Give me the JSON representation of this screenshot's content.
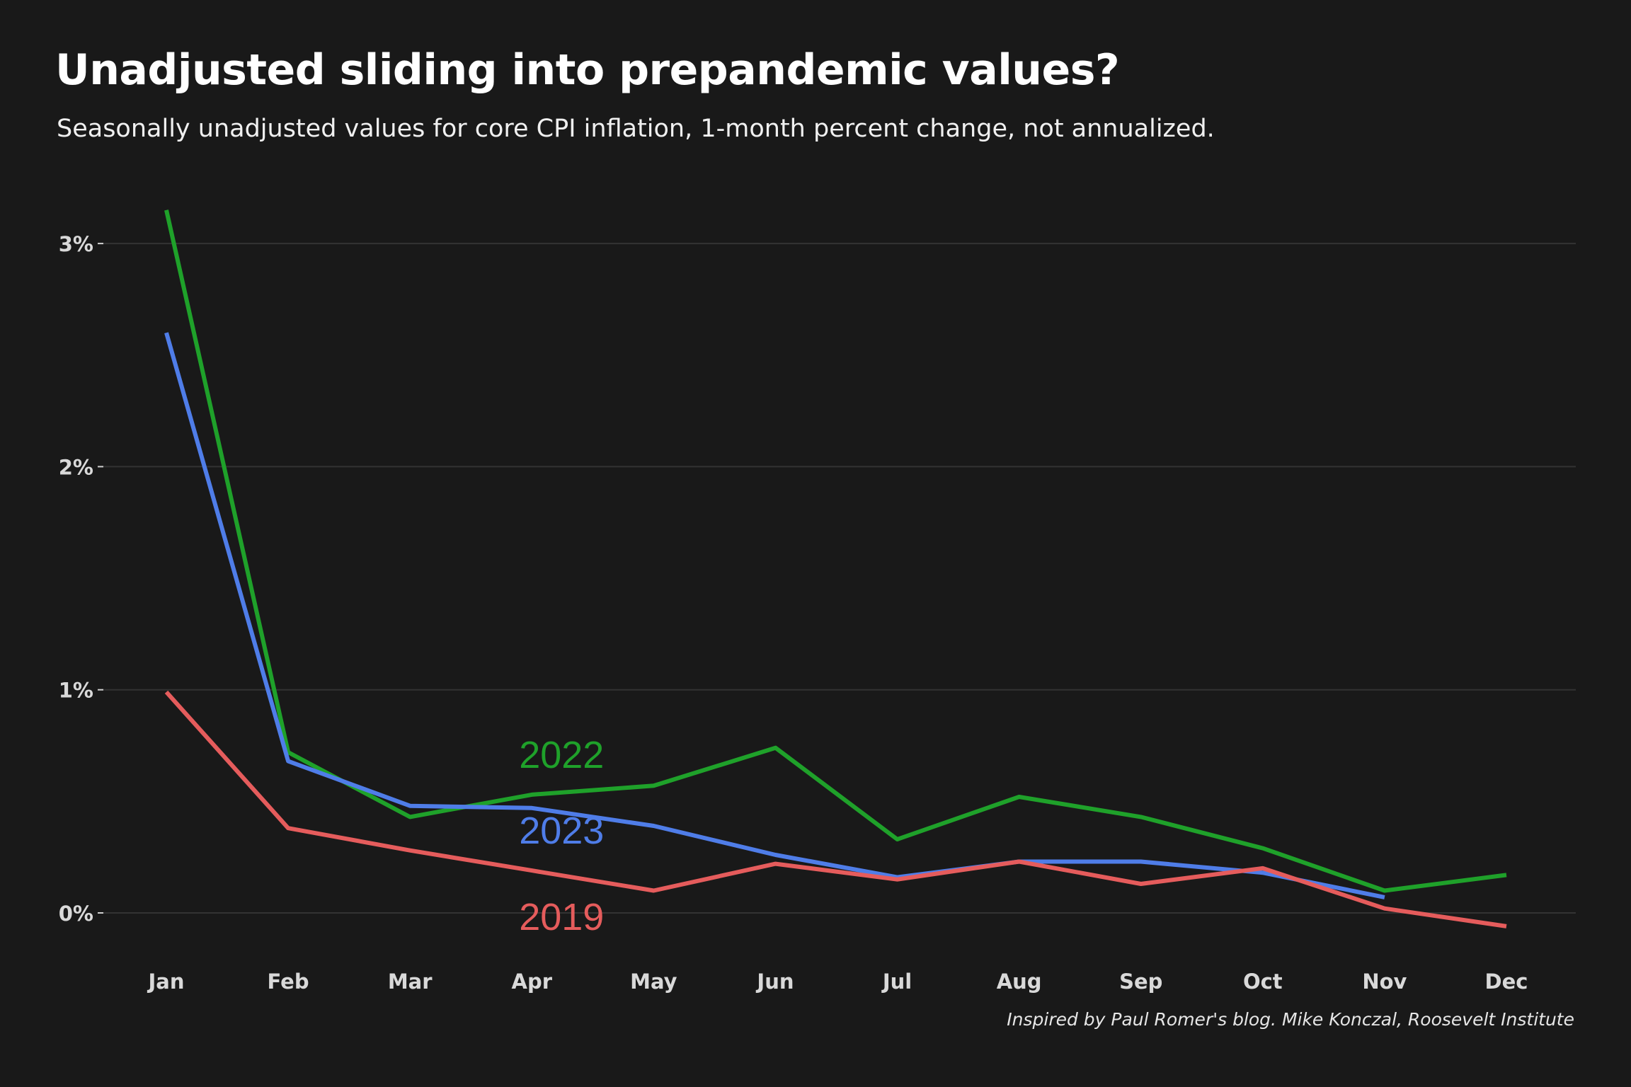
{
  "chart_data": {
    "type": "line",
    "title": "Unadjusted sliding into prepandemic values?",
    "subtitle": "Seasonally unadjusted values for core CPI inflation, 1-month percent change, not annualized.",
    "caption": "Inspired by Paul Romer's blog. Mike Konczal, Roosevelt Institute",
    "xlabel": "",
    "ylabel": "",
    "categories": [
      "Jan",
      "Feb",
      "Mar",
      "Apr",
      "May",
      "Jun",
      "Jul",
      "Aug",
      "Sep",
      "Oct",
      "Nov",
      "Dec"
    ],
    "ylim": [
      -0.2,
      3.3
    ],
    "yticks": [
      0,
      1,
      2,
      3
    ],
    "ytick_labels": [
      "0%",
      "1%",
      "2%",
      "3%"
    ],
    "grid": true,
    "background": "#191919",
    "series": [
      {
        "name": "2022",
        "color": "#1fa12a",
        "label_at": "Apr",
        "values": [
          3.15,
          0.72,
          0.43,
          0.53,
          0.57,
          0.74,
          0.33,
          0.52,
          0.43,
          0.29,
          0.1,
          0.17
        ]
      },
      {
        "name": "2023",
        "color": "#4f7de8",
        "label_at": "Apr",
        "values": [
          2.6,
          0.68,
          0.48,
          0.47,
          0.39,
          0.26,
          0.16,
          0.23,
          0.23,
          0.18,
          0.07,
          null
        ]
      },
      {
        "name": "2019",
        "color": "#e55c5c",
        "label_at": "Apr",
        "values": [
          0.99,
          0.38,
          0.28,
          0.19,
          0.1,
          0.22,
          0.15,
          0.23,
          0.13,
          0.2,
          0.02,
          -0.06
        ]
      }
    ]
  }
}
